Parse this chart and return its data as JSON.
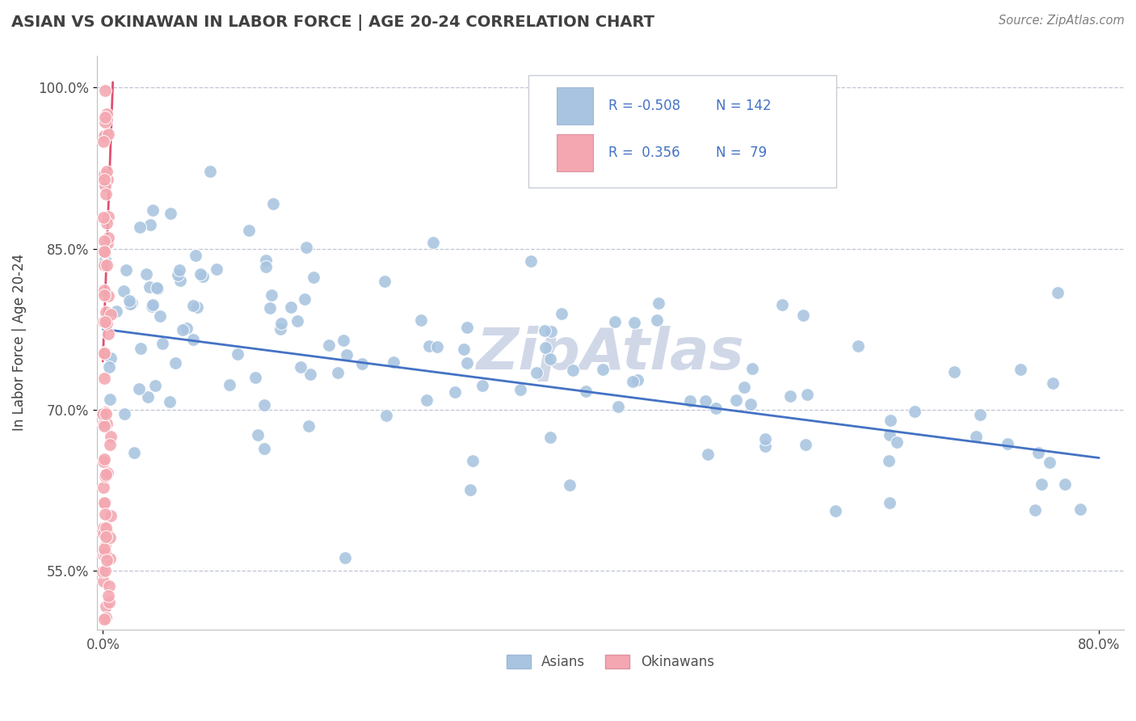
{
  "title": "ASIAN VS OKINAWAN IN LABOR FORCE | AGE 20-24 CORRELATION CHART",
  "source": "Source: ZipAtlas.com",
  "ylabel": "In Labor Force | Age 20-24",
  "xlim": [
    -0.005,
    0.82
  ],
  "ylim": [
    0.495,
    1.03
  ],
  "yticks": [
    0.55,
    0.7,
    0.85,
    1.0
  ],
  "ytick_labels": [
    "55.0%",
    "70.0%",
    "85.0%",
    "100.0%"
  ],
  "xticks": [
    0.0,
    0.8
  ],
  "xtick_labels": [
    "0.0%",
    "80.0%"
  ],
  "legend_r1": "-0.508",
  "legend_n1": "142",
  "legend_r2": "0.356",
  "legend_n2": "79",
  "asian_color": "#a8c4e0",
  "okinawan_color": "#f4a7b0",
  "asian_line_color": "#4472c4",
  "okinawan_line_color": "#e05070",
  "title_color": "#404040",
  "source_color": "#808080",
  "background_color": "#ffffff",
  "grid_color": "#b0b8c8",
  "legend_box_asian": "#a8c4e0",
  "legend_box_okinawan": "#f4a7b0",
  "legend_text_color": "#4472c4",
  "legend_n_color": "#4472c4",
  "watermark": "ZipAtlas",
  "watermark_color": "#d0d8e8",
  "watermark_fontsize": 52,
  "asian_line_start_y": 0.775,
  "asian_line_end_y": 0.655,
  "okinawan_line_x": [
    0.0,
    0.008
  ],
  "okinawan_line_y": [
    0.745,
    1.005
  ]
}
